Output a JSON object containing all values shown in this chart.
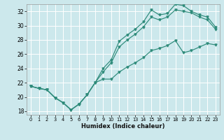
{
  "xlabel": "Humidex (Indice chaleur)",
  "bg_color": "#cce8ec",
  "grid_color": "#ffffff",
  "line_color": "#2e8b7a",
  "xlim": [
    -0.5,
    23.5
  ],
  "ylim": [
    17.5,
    33.0
  ],
  "yticks": [
    18,
    20,
    22,
    24,
    26,
    28,
    30,
    32
  ],
  "xticks": [
    0,
    1,
    2,
    3,
    4,
    5,
    6,
    7,
    8,
    9,
    10,
    11,
    12,
    13,
    14,
    15,
    16,
    17,
    18,
    19,
    20,
    21,
    22,
    23
  ],
  "line1_x": [
    0,
    1,
    2,
    3,
    4,
    5,
    6,
    7,
    8,
    9,
    10,
    11,
    12,
    13,
    14,
    15,
    16,
    17,
    18,
    19,
    20,
    21,
    22,
    23
  ],
  "line1_y": [
    21.5,
    21.2,
    21.0,
    19.9,
    19.2,
    18.2,
    19.0,
    20.3,
    22.0,
    24.0,
    25.2,
    27.8,
    28.7,
    29.5,
    30.5,
    32.2,
    31.5,
    31.7,
    33.0,
    32.8,
    32.0,
    31.5,
    31.2,
    29.8
  ],
  "line2_x": [
    0,
    1,
    2,
    3,
    4,
    5,
    6,
    7,
    8,
    9,
    10,
    11,
    12,
    13,
    14,
    15,
    16,
    17,
    18,
    19,
    20,
    21,
    22,
    23
  ],
  "line2_y": [
    21.5,
    21.2,
    21.0,
    19.9,
    19.2,
    18.2,
    19.0,
    20.3,
    22.0,
    23.5,
    24.8,
    27.0,
    28.0,
    28.8,
    29.8,
    31.2,
    30.8,
    31.2,
    32.2,
    32.0,
    31.8,
    31.2,
    30.8,
    29.5
  ],
  "line3_x": [
    0,
    1,
    2,
    3,
    4,
    5,
    6,
    7,
    8,
    9,
    10,
    11,
    12,
    13,
    14,
    15,
    16,
    17,
    18,
    19,
    20,
    21,
    22,
    23
  ],
  "line3_y": [
    21.5,
    21.2,
    21.0,
    19.9,
    19.2,
    18.2,
    19.0,
    20.3,
    22.0,
    22.5,
    22.5,
    23.5,
    24.2,
    24.8,
    25.5,
    26.5,
    26.8,
    27.2,
    27.9,
    26.2,
    26.5,
    27.0,
    27.5,
    27.3
  ]
}
